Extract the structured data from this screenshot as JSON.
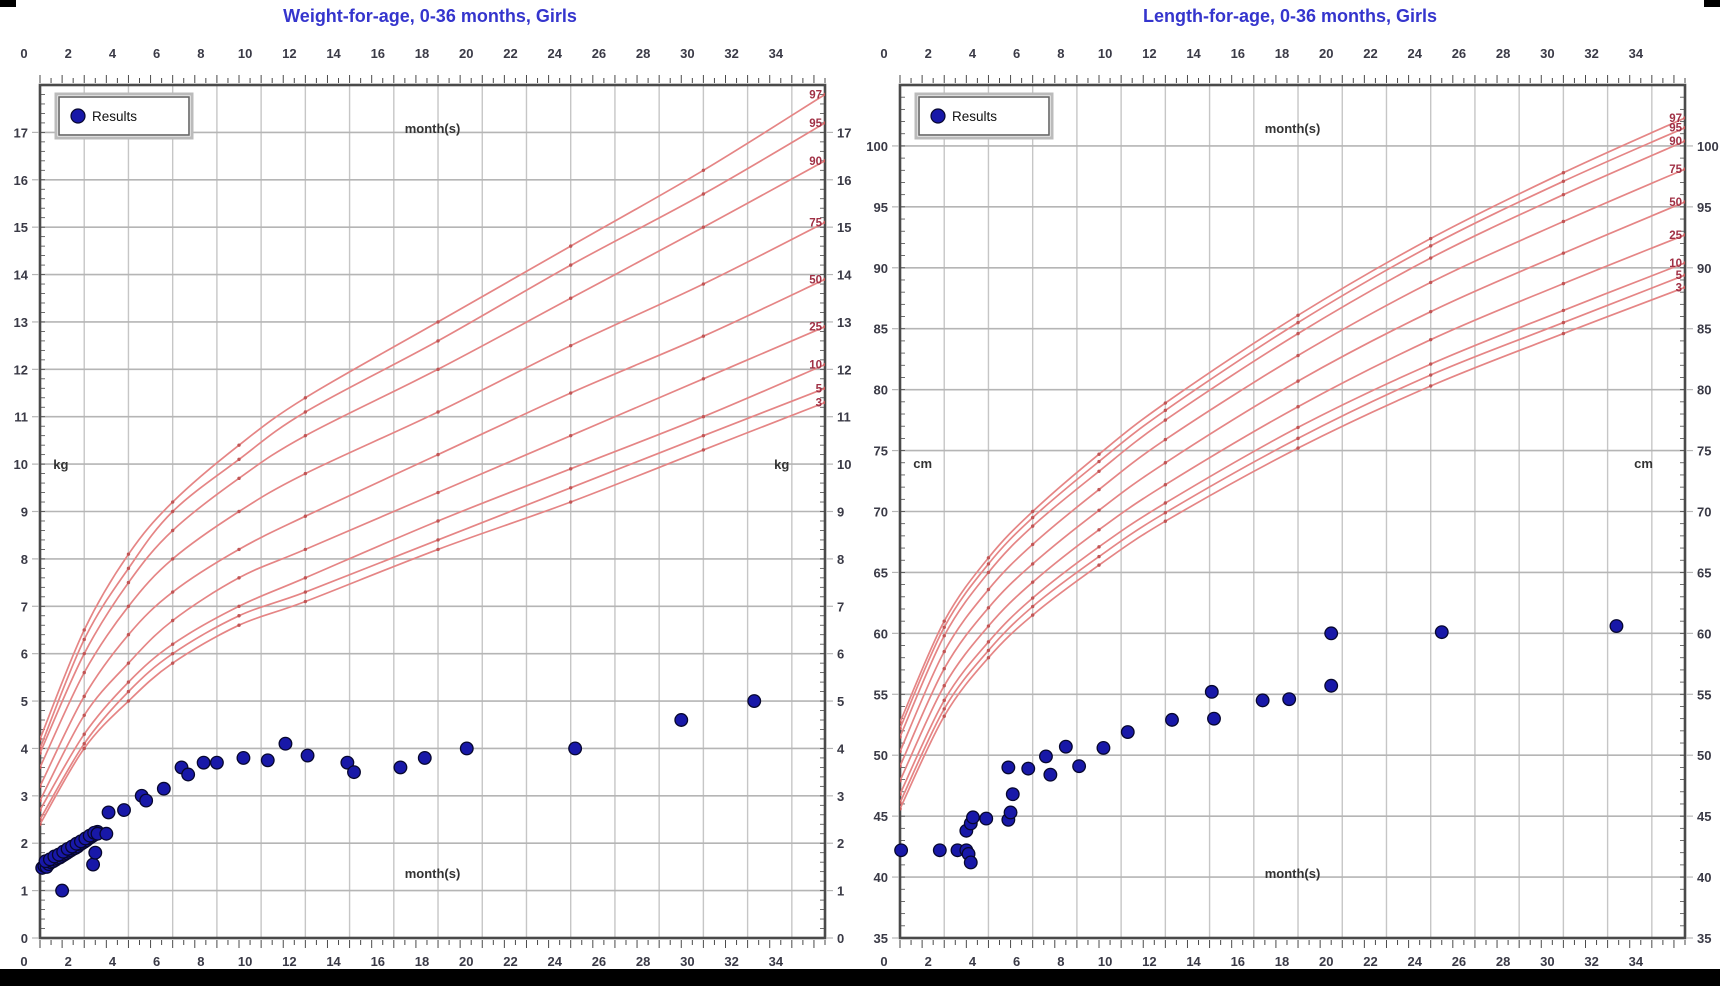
{
  "page": {
    "background": "#ffffff",
    "bottom_bar_color": "#000000"
  },
  "colors": {
    "title": "#3535cd",
    "grid_v": "#c6c6c6",
    "grid_h": "#b5b5b5",
    "box": "#4a4a4a",
    "curve": "#e58585",
    "curve_marker": "#c05555",
    "percentile_label": "#a03045",
    "point_fill": "#1818a8",
    "point_stroke": "#07072e",
    "tick_label": "#3a3a46",
    "caption": "#333333",
    "legend_border": "#666666",
    "legend_outer_border": "#bbbbbb"
  },
  "chart_data": [
    {
      "type": "scatter",
      "name": "weight-for-age",
      "title": "Weight-for-age, 0-36 months, Girls",
      "legend_label": "Results",
      "x": {
        "caption": "month(s)",
        "min": 0,
        "max": 35.5,
        "tick_labels": [
          0,
          2,
          4,
          6,
          8,
          10,
          12,
          14,
          16,
          18,
          20,
          22,
          24,
          26,
          28,
          30,
          32,
          34
        ]
      },
      "y": {
        "unit": "kg",
        "min": 0,
        "max": 18,
        "minor_step": 0.2,
        "tick_labels": [
          0,
          1,
          2,
          3,
          4,
          5,
          6,
          7,
          8,
          9,
          10,
          11,
          12,
          13,
          14,
          15,
          16,
          17
        ]
      },
      "unit_positions": {
        "left_month": 0.6,
        "right_month": 33.2,
        "value": 10.0
      },
      "percentile_months": [
        0,
        2,
        4,
        6,
        9,
        12,
        18,
        24,
        30,
        35.5
      ],
      "percentiles": [
        {
          "label": "97",
          "values": [
            4.2,
            6.5,
            8.1,
            9.2,
            10.4,
            11.4,
            13.0,
            14.6,
            16.2,
            17.8
          ]
        },
        {
          "label": "95",
          "values": [
            4.0,
            6.3,
            7.8,
            9.0,
            10.1,
            11.1,
            12.6,
            14.2,
            15.7,
            17.2
          ]
        },
        {
          "label": "90",
          "values": [
            3.9,
            6.0,
            7.5,
            8.6,
            9.7,
            10.6,
            12.0,
            13.5,
            15.0,
            16.4
          ]
        },
        {
          "label": "75",
          "values": [
            3.6,
            5.6,
            7.0,
            8.0,
            9.0,
            9.8,
            11.1,
            12.5,
            13.8,
            15.1
          ]
        },
        {
          "label": "50",
          "values": [
            3.2,
            5.1,
            6.4,
            7.3,
            8.2,
            8.9,
            10.2,
            11.5,
            12.7,
            13.9
          ]
        },
        {
          "label": "25",
          "values": [
            2.9,
            4.7,
            5.8,
            6.7,
            7.6,
            8.2,
            9.4,
            10.6,
            11.8,
            12.9
          ]
        },
        {
          "label": "10",
          "values": [
            2.7,
            4.3,
            5.4,
            6.2,
            7.0,
            7.6,
            8.8,
            9.9,
            11.0,
            12.1
          ]
        },
        {
          "label": "5",
          "values": [
            2.5,
            4.1,
            5.2,
            6.0,
            6.8,
            7.3,
            8.4,
            9.5,
            10.6,
            11.6
          ]
        },
        {
          "label": "3",
          "values": [
            2.4,
            4.0,
            5.0,
            5.8,
            6.6,
            7.1,
            8.2,
            9.2,
            10.3,
            11.3
          ]
        }
      ],
      "points": [
        [
          0.1,
          1.48
        ],
        [
          0.2,
          1.52
        ],
        [
          0.3,
          1.5
        ],
        [
          0.4,
          1.56
        ],
        [
          0.5,
          1.6
        ],
        [
          0.6,
          1.62
        ],
        [
          0.7,
          1.65
        ],
        [
          0.8,
          1.68
        ],
        [
          0.9,
          1.7
        ],
        [
          1.0,
          1.73
        ],
        [
          1.1,
          1.76
        ],
        [
          1.2,
          1.79
        ],
        [
          1.3,
          1.82
        ],
        [
          1.4,
          1.85
        ],
        [
          1.5,
          1.88
        ],
        [
          1.6,
          1.9
        ],
        [
          1.7,
          1.93
        ],
        [
          1.8,
          1.97
        ],
        [
          1.9,
          2.0
        ],
        [
          2.0,
          2.03
        ],
        [
          2.1,
          2.06
        ],
        [
          2.2,
          2.1
        ],
        [
          2.3,
          2.13
        ],
        [
          2.4,
          2.16
        ],
        [
          2.5,
          2.2
        ],
        [
          2.6,
          2.24
        ],
        [
          0.25,
          1.62
        ],
        [
          0.45,
          1.66
        ],
        [
          0.65,
          1.72
        ],
        [
          0.85,
          1.76
        ],
        [
          1.05,
          1.82
        ],
        [
          1.25,
          1.88
        ],
        [
          1.45,
          1.93
        ],
        [
          1.65,
          1.99
        ],
        [
          1.85,
          2.04
        ],
        [
          2.05,
          2.1
        ],
        [
          2.25,
          2.16
        ],
        [
          2.45,
          2.22
        ],
        [
          1.0,
          1.0
        ],
        [
          2.4,
          1.55
        ],
        [
          2.5,
          1.8
        ],
        [
          2.6,
          2.2
        ],
        [
          3.0,
          2.2
        ],
        [
          3.1,
          2.65
        ],
        [
          3.8,
          2.7
        ],
        [
          4.6,
          3.0
        ],
        [
          4.8,
          2.9
        ],
        [
          5.6,
          3.15
        ],
        [
          6.4,
          3.6
        ],
        [
          6.7,
          3.45
        ],
        [
          7.4,
          3.7
        ],
        [
          8.0,
          3.7
        ],
        [
          9.2,
          3.8
        ],
        [
          10.3,
          3.75
        ],
        [
          11.1,
          4.1
        ],
        [
          12.1,
          3.85
        ],
        [
          13.9,
          3.7
        ],
        [
          14.2,
          3.5
        ],
        [
          16.3,
          3.6
        ],
        [
          17.4,
          3.8
        ],
        [
          19.3,
          4.0
        ],
        [
          24.2,
          4.0
        ],
        [
          29.0,
          4.6
        ],
        [
          32.3,
          5.0
        ]
      ]
    },
    {
      "type": "scatter",
      "name": "length-for-age",
      "title": "Length-for-age, 0-36 months, Girls",
      "legend_label": "Results",
      "x": {
        "caption": "month(s)",
        "min": 0,
        "max": 35.5,
        "tick_labels": [
          0,
          2,
          4,
          6,
          8,
          10,
          12,
          14,
          16,
          18,
          20,
          22,
          24,
          26,
          28,
          30,
          32,
          34
        ]
      },
      "y": {
        "unit": "cm",
        "min": 35,
        "max": 105,
        "minor_step": 1,
        "tick_labels": [
          35,
          40,
          45,
          50,
          55,
          60,
          65,
          70,
          75,
          80,
          85,
          90,
          95,
          100
        ]
      },
      "unit_positions": {
        "left_month": 0.6,
        "right_month": 33.2,
        "value": 74.0
      },
      "percentile_months": [
        0,
        2,
        4,
        6,
        9,
        12,
        18,
        24,
        30,
        35.5
      ],
      "percentiles": [
        {
          "label": "97",
          "values": [
            52.7,
            61.0,
            66.2,
            70.0,
            74.7,
            78.9,
            86.1,
            92.4,
            97.8,
            102.3
          ]
        },
        {
          "label": "95",
          "values": [
            52.2,
            60.5,
            65.7,
            69.5,
            74.1,
            78.3,
            85.5,
            91.8,
            97.1,
            101.5
          ]
        },
        {
          "label": "90",
          "values": [
            51.5,
            59.8,
            65.0,
            68.8,
            73.3,
            77.5,
            84.6,
            90.8,
            96.0,
            100.4
          ]
        },
        {
          "label": "75",
          "values": [
            50.3,
            58.5,
            63.6,
            67.3,
            71.8,
            75.9,
            82.8,
            88.8,
            93.8,
            98.1
          ]
        },
        {
          "label": "50",
          "values": [
            49.1,
            57.1,
            62.1,
            65.7,
            70.1,
            74.0,
            80.7,
            86.4,
            91.2,
            95.4
          ]
        },
        {
          "label": "25",
          "values": [
            47.9,
            55.7,
            60.6,
            64.2,
            68.5,
            72.2,
            78.6,
            84.1,
            88.7,
            92.7
          ]
        },
        {
          "label": "10",
          "values": [
            46.8,
            54.5,
            59.3,
            62.9,
            67.1,
            70.7,
            76.9,
            82.1,
            86.5,
            90.4
          ]
        },
        {
          "label": "5",
          "values": [
            46.1,
            53.8,
            58.6,
            62.2,
            66.3,
            69.9,
            76.0,
            81.2,
            85.5,
            89.4
          ]
        },
        {
          "label": "3",
          "values": [
            45.6,
            53.2,
            58.0,
            61.5,
            65.6,
            69.2,
            75.2,
            80.3,
            84.6,
            88.4
          ]
        }
      ],
      "points": [
        [
          0.05,
          42.2
        ],
        [
          1.8,
          42.2
        ],
        [
          2.6,
          42.2
        ],
        [
          3.0,
          42.2
        ],
        [
          3.1,
          41.9
        ],
        [
          3.2,
          41.2
        ],
        [
          3.0,
          43.8
        ],
        [
          3.2,
          44.4
        ],
        [
          3.3,
          44.9
        ],
        [
          3.9,
          44.8
        ],
        [
          4.9,
          44.7
        ],
        [
          5.0,
          45.3
        ],
        [
          5.1,
          46.8
        ],
        [
          4.9,
          49.0
        ],
        [
          5.8,
          48.9
        ],
        [
          6.6,
          49.9
        ],
        [
          6.8,
          48.4
        ],
        [
          7.5,
          50.7
        ],
        [
          8.1,
          49.1
        ],
        [
          9.2,
          50.6
        ],
        [
          10.3,
          51.9
        ],
        [
          12.3,
          52.9
        ],
        [
          14.1,
          55.2
        ],
        [
          14.2,
          53.0
        ],
        [
          16.4,
          54.5
        ],
        [
          17.6,
          54.6
        ],
        [
          19.5,
          55.7
        ],
        [
          19.5,
          60.0
        ],
        [
          24.5,
          60.1
        ],
        [
          32.4,
          60.6
        ]
      ]
    }
  ]
}
